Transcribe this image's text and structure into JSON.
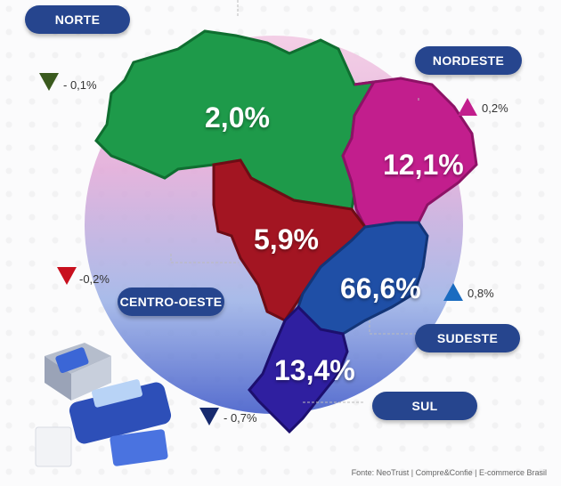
{
  "regions": [
    {
      "id": "norte",
      "name": "NORTE",
      "share": "2,0%",
      "change": "- 0,1%",
      "direction": "down",
      "color": "#1e9a4a",
      "arrow_color": "#3a5a1e"
    },
    {
      "id": "nordeste",
      "name": "NORDESTE",
      "share": "12,1%",
      "change": "0,2%",
      "direction": "up",
      "color": "#c21e8d",
      "arrow_color": "#c21e8d"
    },
    {
      "id": "centro_oeste",
      "name": "CENTRO-OESTE",
      "share": "5,9%",
      "change": "-0,2%",
      "direction": "down",
      "color": "#a31522",
      "arrow_color": "#c8101e"
    },
    {
      "id": "sudeste",
      "name": "SUDESTE",
      "share": "66,6%",
      "change": "0,8%",
      "direction": "up",
      "color": "#1f4fa6",
      "arrow_color": "#1a6cc0"
    },
    {
      "id": "sul",
      "name": "SUL",
      "share": "13,4%",
      "change": "- 0,7%",
      "direction": "down",
      "color": "#2f1fa0",
      "arrow_color": "#172a6e"
    }
  ],
  "source": "Fonte: NeoTrust | Compre&Confie | E-commerce Brasil",
  "colors": {
    "pill": "#26458e",
    "circle_top": "#f2c7e2",
    "circle_bottom": "#3a55c7"
  }
}
